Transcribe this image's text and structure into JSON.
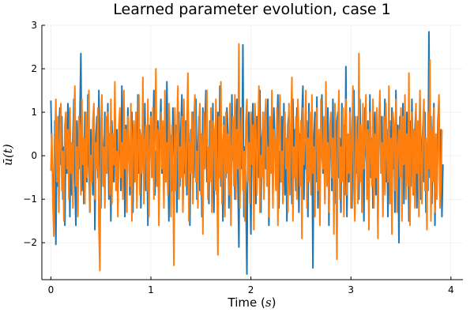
{
  "chart_data": {
    "type": "line",
    "title": "Learned parameter evolution, case 1",
    "xlabel_text": "Time (",
    "xlabel_math": "s",
    "xlabel_close": ")",
    "ylabel_math": "ū(t)",
    "xlim": [
      -0.09,
      4.12
    ],
    "ylim": [
      -2.85,
      3.0
    ],
    "xticks": [
      0,
      1,
      2,
      3,
      4
    ],
    "xtick_labels": [
      "0",
      "1",
      "2",
      "3",
      "4"
    ],
    "yticks": [
      -2,
      -1,
      0,
      1,
      2,
      3
    ],
    "ytick_labels": [
      "−2",
      "−1",
      "0",
      "1",
      "2",
      "3"
    ],
    "grid": true,
    "legend": "none",
    "x_start": 0,
    "x_step": 0.01,
    "series": [
      {
        "name": "series 1",
        "color": "#1f77b4",
        "values": [
          1.27,
          0.1,
          -0.6,
          -1.3,
          0.8,
          -2.04,
          0.3,
          -0.7,
          0.6,
          1.1,
          -0.2,
          0.9,
          -1.0,
          0.2,
          -1.6,
          0.5,
          -0.4,
          1.2,
          0.7,
          -1.4,
          0.3,
          -0.9,
          0.4,
          1.3,
          -0.5,
          -1.6,
          0.8,
          0.1,
          -0.3,
          0.9,
          2.35,
          -0.8,
          0.2,
          -1.1,
          1.0,
          0.3,
          -0.6,
          1.4,
          -0.2,
          -1.3,
          0.6,
          0.0,
          -0.9,
          1.1,
          -1.7,
          0.4,
          0.9,
          -0.5,
          1.5,
          -0.1,
          -1.2,
          0.7,
          0.2,
          -0.7,
          1.0,
          -0.4,
          0.3,
          1.2,
          -1.0,
          0.5,
          -1.5,
          0.8,
          0.0,
          -0.6,
          1.3,
          -0.3,
          0.6,
          -1.1,
          0.2,
          0.9,
          -0.8,
          1.6,
          -0.2,
          0.4,
          -1.4,
          0.7,
          -0.5,
          1.1,
          0.1,
          -0.9,
          0.5,
          1.0,
          -1.3,
          0.3,
          -0.1,
          0.8,
          -0.7,
          1.4,
          -0.4,
          0.6,
          -1.2,
          0.2,
          0.9,
          -0.3,
          1.2,
          -0.8,
          0.4,
          -1.6,
          0.7,
          0.0,
          1.0,
          -0.5,
          0.3,
          1.5,
          -0.9,
          0.1,
          -0.2,
          0.8,
          -1.1,
          0.6,
          1.3,
          -0.4,
          0.2,
          -1.0,
          0.9,
          -0.6,
          1.7,
          -0.1,
          -1.5,
          0.5,
          0.4,
          -0.8,
          1.1,
          0.3,
          -0.3,
          0.7,
          -1.3,
          0.2,
          1.0,
          -0.7,
          0.6,
          1.4,
          -1.2,
          0.1,
          -0.4,
          0.8,
          -0.9,
          1.2,
          0.3,
          -1.6,
          0.6,
          -0.2,
          1.0,
          -0.5,
          0.4,
          1.3,
          -1.0,
          0.2,
          0.9,
          -0.8,
          0.5,
          -1.4,
          1.1,
          -0.3,
          0.7,
          1.5,
          -0.6,
          0.0,
          -1.1,
          0.8,
          0.4,
          -0.2,
          1.2,
          -1.3,
          0.3,
          0.6,
          -0.9,
          1.0,
          -0.4,
          1.6,
          -0.7,
          0.2,
          -1.5,
          0.9,
          0.1,
          -0.5,
          1.1,
          0.5,
          -1.2,
          0.3,
          -0.8,
          1.4,
          -0.1,
          0.7,
          -1.0,
          0.4,
          1.3,
          -0.6,
          -2.1,
          0.8,
          1.1,
          -0.3,
          2.55,
          -1.4,
          0.2,
          -0.9,
          -2.72,
          0.6,
          1.0,
          -0.2,
          -1.8,
          0.5,
          1.2,
          -0.7,
          0.3,
          -1.1,
          0.9,
          0.0,
          -0.5,
          1.5,
          -1.3,
          0.4,
          0.7,
          -0.8,
          1.0,
          -0.3,
          0.6,
          1.3,
          -1.6,
          0.2,
          -0.4,
          0.8,
          -1.0,
          1.1,
          0.3,
          -0.7,
          0.5,
          1.4,
          -1.2,
          0.1,
          -0.6,
          0.9,
          -0.2,
          1.2,
          -0.9,
          0.4,
          -1.5,
          0.7,
          1.0,
          -0.4,
          0.3,
          -1.1,
          1.3,
          -0.1,
          0.6,
          -0.8,
          1.1,
          0.2,
          -1.3,
          0.5,
          -0.5,
          0.9,
          1.6,
          -1.0,
          0.3,
          -0.3,
          0.8,
          -1.4,
          1.2,
          0.0,
          -0.7,
          0.6,
          -2.58,
          0.4,
          1.0,
          -0.6,
          1.35,
          -1.2,
          0.2,
          -0.9,
          0.7,
          1.4,
          -0.4,
          0.3,
          -1.0,
          0.9,
          -0.2,
          1.1,
          -1.6,
          0.5,
          0.6,
          -0.8,
          1.3,
          -0.3,
          0.1,
          -1.1,
          0.8,
          1.0,
          -0.5,
          0.4,
          -1.3,
          1.2,
          -0.1,
          0.7,
          -0.9,
          2.05,
          -1.4,
          0.3,
          -0.6,
          1.1,
          0.2,
          -1.2,
          0.5,
          1.5,
          -0.7,
          0.0,
          -0.4,
          0.9,
          -1.0,
          1.3,
          0.3,
          -0.8,
          0.6,
          -1.5,
          1.1,
          0.1,
          -0.3,
          0.8,
          -1.1,
          1.4,
          -0.5,
          0.4,
          -1.2,
          0.7,
          1.0,
          -0.9,
          0.2,
          -1.6,
          0.5,
          1.2,
          -0.2,
          0.9,
          -1.0,
          0.3,
          1.3,
          -0.6,
          0.6,
          -1.4,
          0.1,
          0.8,
          -0.8,
          1.1,
          -0.3,
          0.4,
          -1.3,
          1.5,
          -0.1,
          0.7,
          -2.0,
          0.9,
          0.2,
          -0.5,
          1.2,
          -1.1,
          0.5,
          -0.4,
          1.0,
          0.3,
          -1.5,
          0.8,
          -0.7,
          1.3,
          0.0,
          -0.9,
          0.6,
          1.1,
          -1.2,
          0.4,
          -0.2,
          1.4,
          -1.0,
          0.2,
          0.7,
          -0.6,
          1.0,
          -1.3,
          0.3,
          -0.8,
          2.85,
          -0.5,
          0.9,
          -1.1,
          0.5,
          1.2,
          -1.6,
          0.1,
          -0.3,
          0.8,
          1.3,
          -0.9,
          0.6,
          -1.4,
          -0.2
        ]
      },
      {
        "name": "series 2",
        "color": "#ff7f0e",
        "values": [
          -0.35,
          0.5,
          -1.1,
          -1.85,
          0.2,
          1.3,
          -0.6,
          0.9,
          -1.3,
          0.4,
          1.2,
          -0.8,
          0.1,
          -1.5,
          0.7,
          1.0,
          -0.3,
          0.6,
          -1.0,
          1.1,
          -0.4,
          0.3,
          -1.2,
          0.8,
          1.6,
          -0.7,
          0.2,
          -1.4,
          0.9,
          0.5,
          -0.9,
          1.3,
          -0.2,
          0.4,
          -1.1,
          1.0,
          -0.5,
          0.7,
          1.5,
          -1.3,
          0.0,
          -0.6,
          0.8,
          1.2,
          -1.0,
          0.3,
          -0.3,
          1.1,
          -1.6,
          -2.64,
          0.6,
          1.4,
          -0.7,
          0.2,
          -1.2,
          0.9,
          -0.4,
          1.0,
          0.4,
          -0.9,
          1.3,
          -1.1,
          0.5,
          -0.2,
          1.7,
          -0.8,
          0.1,
          -1.4,
          0.7,
          1.1,
          -0.5,
          0.3,
          -1.0,
          1.5,
          -0.3,
          0.6,
          -1.3,
          0.9,
          0.0,
          -0.7,
          1.2,
          -1.5,
          0.4,
          0.8,
          -0.6,
          1.0,
          -1.2,
          0.2,
          1.4,
          -0.9,
          0.5,
          -0.4,
          1.8,
          -1.1,
          0.3,
          0.7,
          -0.8,
          1.3,
          -1.4,
          0.1,
          0.9,
          -0.5,
          1.1,
          -1.0,
          0.4,
          2.0,
          -0.7,
          0.6,
          -1.6,
          0.2,
          1.0,
          -0.3,
          0.8,
          -1.2,
          1.5,
          -0.6,
          0.3,
          -0.9,
          1.2,
          0.5,
          -1.4,
          0.7,
          -0.2,
          -2.52,
          1.1,
          -0.8,
          0.4,
          1.6,
          -1.0,
          0.2,
          -0.5,
          0.9,
          -1.3,
          1.3,
          0.0,
          -0.7,
          0.6,
          1.9,
          -1.5,
          0.3,
          -0.4,
          1.0,
          -1.1,
          0.8,
          1.4,
          -0.6,
          0.1,
          -1.2,
          0.7,
          1.2,
          -0.9,
          0.5,
          -1.8,
          1.0,
          -0.3,
          0.4,
          1.5,
          -1.0,
          0.2,
          -0.6,
          1.1,
          -1.3,
          0.8,
          0.6,
          -0.8,
          1.3,
          -0.2,
          -2.28,
          0.9,
          -0.5,
          1.7,
          -1.1,
          0.3,
          0.7,
          -1.4,
          1.0,
          -0.4,
          0.5,
          -0.9,
          1.2,
          -1.6,
          0.2,
          0.9,
          -0.7,
          1.4,
          -1.0,
          0.6,
          -0.3,
          2.57,
          -1.2,
          0.4,
          1.1,
          -0.8,
          0.1,
          -1.5,
          0.8,
          1.3,
          -0.6,
          0.3,
          -1.1,
          1.0,
          -0.2,
          0.7,
          -1.7,
          1.2,
          0.5,
          -0.9,
          0.4,
          1.6,
          -1.3,
          0.0,
          -0.5,
          1.0,
          -1.0,
          0.8,
          1.3,
          -0.7,
          0.2,
          -1.4,
          0.9,
          -0.4,
          1.5,
          -1.2,
          0.6,
          0.3,
          -0.8,
          1.1,
          -1.6,
          0.5,
          1.4,
          -0.6,
          0.1,
          -1.1,
          0.7,
          1.0,
          -0.3,
          0.4,
          -1.3,
          1.2,
          -0.9,
          0.6,
          1.8,
          -1.5,
          0.2,
          -0.5,
          0.9,
          -1.0,
          1.3,
          0.3,
          -0.7,
          0.8,
          -1.9,
          1.1,
          -0.2,
          0.5,
          1.5,
          -1.2,
          0.4,
          -0.6,
          1.0,
          -0.9,
          1.4,
          -0.4,
          0.2,
          -1.4,
          0.8,
          1.1,
          -0.8,
          0.6,
          -1.6,
          1.3,
          0.0,
          -0.3,
          0.9,
          -1.1,
          1.7,
          -0.7,
          0.3,
          -1.3,
          0.7,
          1.0,
          -0.5,
          0.4,
          -1.8,
          1.2,
          -0.2,
          -2.38,
          0.6,
          1.5,
          -1.0,
          0.2,
          -0.6,
          1.1,
          -1.4,
          0.8,
          1.3,
          -0.9,
          0.5,
          -0.4,
          1.0,
          -1.2,
          0.3,
          1.6,
          -0.8,
          -1.5,
          0.9,
          0.1,
          -1.1,
          2.35,
          -0.6,
          0.7,
          -1.3,
          1.2,
          -0.3,
          0.4,
          1.4,
          -1.0,
          0.6,
          -1.7,
          1.0,
          0.2,
          -0.7,
          1.3,
          -1.2,
          0.5,
          -0.5,
          1.1,
          -1.9,
          0.8,
          1.5,
          -0.4,
          0.3,
          -1.4,
          0.9,
          -0.9,
          1.2,
          0.0,
          -0.6,
          1.6,
          -1.1,
          0.4,
          -1.8,
          1.0,
          0.7,
          -0.8,
          1.3,
          -1.3,
          0.2,
          0.6,
          -0.5,
          1.1,
          -1.5,
          0.9,
          -0.2,
          1.4,
          -1.0,
          0.5,
          -0.7,
          1.9,
          -1.6,
          0.3,
          1.0,
          -0.9,
          0.6,
          -1.2,
          1.2,
          -0.4,
          0.8,
          -1.4,
          1.5,
          -0.1,
          -1.1,
          0.7,
          1.3,
          -0.8,
          0.4,
          -1.7,
          1.0,
          -0.3,
          2.2,
          -1.5,
          0.6,
          -0.6,
          1.1,
          -1.3,
          0.5,
          -1.0,
          0.3,
          1.4,
          -1.2,
          -0.7,
          0.6
        ]
      }
    ]
  }
}
